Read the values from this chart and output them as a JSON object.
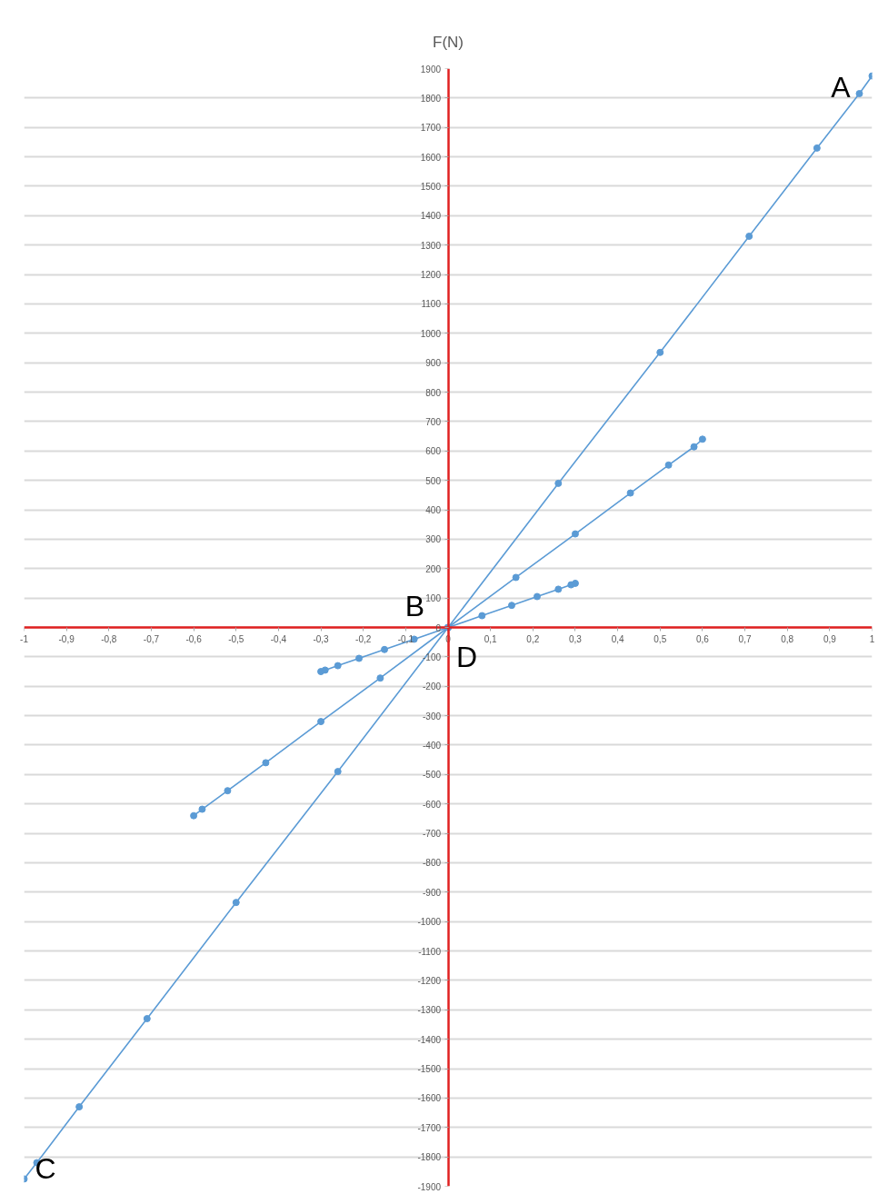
{
  "chart_data": {
    "type": "line",
    "ylabel": "F(N)",
    "xlim": [
      -1,
      1
    ],
    "ylim": [
      -1900,
      1900
    ],
    "xticks": [
      -1,
      {
        "value": -0.9,
        "label": "-0,9"
      },
      {
        "value": -0.8,
        "label": "-0,8"
      },
      {
        "value": -0.7,
        "label": "-0,7"
      },
      {
        "value": -0.6,
        "label": "-0,6"
      },
      {
        "value": -0.5,
        "label": "-0,5"
      },
      {
        "value": -0.4,
        "label": "-0,4"
      },
      {
        "value": -0.3,
        "label": "-0,3"
      },
      {
        "value": -0.2,
        "label": "-0,2"
      },
      {
        "value": -0.1,
        "label": "-0,1"
      },
      0,
      {
        "value": 0.1,
        "label": "0,1"
      },
      {
        "value": 0.2,
        "label": "0,2"
      },
      {
        "value": 0.3,
        "label": "0,3"
      },
      {
        "value": 0.4,
        "label": "0,4"
      },
      {
        "value": 0.5,
        "label": "0,5"
      },
      {
        "value": 0.6,
        "label": "0,6"
      },
      {
        "value": 0.7,
        "label": "0,7"
      },
      {
        "value": 0.8,
        "label": "0,8"
      },
      {
        "value": 0.9,
        "label": "0,9"
      },
      1
    ],
    "yticks": [
      -1900,
      -1800,
      -1700,
      -1600,
      -1500,
      -1400,
      -1300,
      -1200,
      -1100,
      -1000,
      -900,
      -800,
      -700,
      -600,
      -500,
      -400,
      -300,
      -200,
      -100,
      0,
      100,
      200,
      300,
      400,
      500,
      600,
      700,
      800,
      900,
      1000,
      1100,
      1200,
      1300,
      1400,
      1500,
      1600,
      1700,
      1800,
      1900
    ],
    "grid": "y",
    "marker": "circle",
    "line_style": "solid",
    "series": [
      {
        "color": "#5b9bd5",
        "x": [
          -1,
          -0.97,
          -0.87,
          -0.71,
          -0.5,
          -0.26,
          0,
          0.26,
          0.5,
          0.71,
          0.87,
          0.97,
          1
        ],
        "values": [
          -1875,
          -1820,
          -1630,
          -1330,
          -935,
          -490,
          0,
          490,
          935,
          1330,
          1630,
          1815,
          1875
        ]
      },
      {
        "color": "#5b9bd5",
        "x": [
          -0.6,
          -0.58,
          -0.52,
          -0.43,
          -0.3,
          -0.16,
          0,
          0.16,
          0.3,
          0.43,
          0.52,
          0.58,
          0.6
        ],
        "values": [
          -640,
          -618,
          -555,
          -460,
          -320,
          -172,
          0,
          170,
          318,
          457,
          552,
          614,
          640
        ]
      },
      {
        "color": "#5b9bd5",
        "x": [
          -0.3,
          -0.29,
          -0.26,
          -0.21,
          -0.15,
          -0.08,
          0,
          0.08,
          0.15,
          0.21,
          0.26,
          0.29,
          0.3
        ],
        "values": [
          -150,
          -145,
          -130,
          -105,
          -75,
          -40,
          0,
          40,
          75,
          105,
          130,
          145,
          150
        ]
      }
    ],
    "annotations": [
      {
        "text": "A",
        "x": 1,
        "y": 1875
      },
      {
        "text": "B",
        "x": 0,
        "y": 0
      },
      {
        "text": "C",
        "x": -1,
        "y": -1875
      },
      {
        "text": "D",
        "x": 0,
        "y": 0
      }
    ]
  }
}
